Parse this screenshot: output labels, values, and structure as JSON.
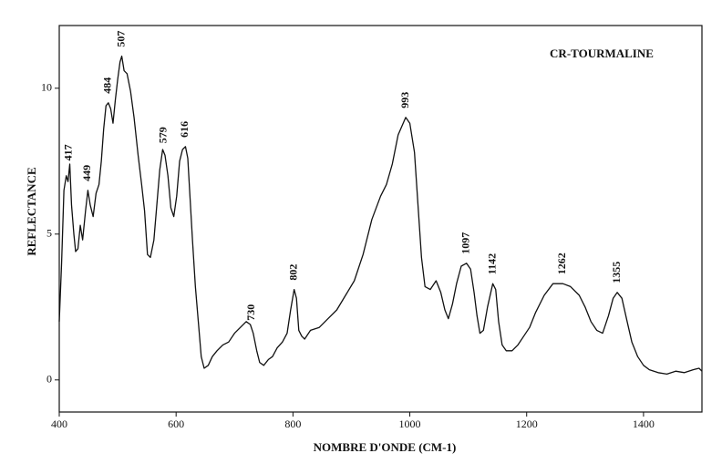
{
  "chart_data": {
    "type": "line",
    "title": "CR-TOURMALINE",
    "x_label": "NOMBRE D'ONDE (CM-1)",
    "y_label": "REFLECTANCE",
    "color": "#111111",
    "xlim": [
      400,
      1500
    ],
    "ylim": [
      -1.1,
      12.15
    ],
    "xticks": [
      400,
      600,
      800,
      1000,
      1200,
      1400
    ],
    "yticks": [
      0,
      5,
      10
    ],
    "grid": false,
    "peak_labels": [
      417,
      449,
      484,
      507,
      579,
      616,
      730,
      802,
      993,
      1097,
      1142,
      1262,
      1355
    ],
    "x": [
      400,
      404,
      408,
      412,
      415,
      418,
      421,
      425,
      428,
      432,
      436,
      440,
      445,
      449,
      453,
      458,
      463,
      468,
      472,
      476,
      480,
      484,
      488,
      492,
      496,
      500,
      504,
      507,
      511,
      516,
      522,
      528,
      535,
      541,
      546,
      551,
      556,
      562,
      567,
      572,
      577,
      581,
      586,
      591,
      596,
      601,
      606,
      611,
      616,
      620,
      624,
      628,
      633,
      638,
      643,
      648,
      655,
      662,
      670,
      680,
      690,
      700,
      710,
      720,
      727,
      732,
      738,
      743,
      750,
      758,
      765,
      773,
      782,
      790,
      796,
      802,
      806,
      810,
      815,
      820,
      830,
      845,
      860,
      875,
      890,
      905,
      920,
      935,
      950,
      960,
      970,
      980,
      993,
      1000,
      1008,
      1015,
      1020,
      1026,
      1035,
      1045,
      1053,
      1060,
      1066,
      1073,
      1080,
      1088,
      1097,
      1104,
      1110,
      1115,
      1120,
      1126,
      1133,
      1142,
      1147,
      1152,
      1158,
      1165,
      1175,
      1185,
      1195,
      1205,
      1215,
      1230,
      1245,
      1262,
      1275,
      1290,
      1300,
      1310,
      1320,
      1330,
      1340,
      1348,
      1355,
      1363,
      1372,
      1380,
      1390,
      1400,
      1410,
      1425,
      1440,
      1455,
      1470,
      1485,
      1495,
      1500
    ],
    "values": [
      2.0,
      4.0,
      6.5,
      7.0,
      6.8,
      7.4,
      6.0,
      5.0,
      4.4,
      4.5,
      5.3,
      4.8,
      5.8,
      6.5,
      6.0,
      5.6,
      6.4,
      6.7,
      7.5,
      8.6,
      9.4,
      9.5,
      9.3,
      8.8,
      9.6,
      10.3,
      10.9,
      11.1,
      10.6,
      10.5,
      9.9,
      9.0,
      7.7,
      6.7,
      5.8,
      4.3,
      4.2,
      4.8,
      6.0,
      7.2,
      7.9,
      7.7,
      7.0,
      5.9,
      5.6,
      6.3,
      7.5,
      7.9,
      8.0,
      7.6,
      6.2,
      4.8,
      3.2,
      2.0,
      0.8,
      0.4,
      0.5,
      0.8,
      1.0,
      1.2,
      1.3,
      1.6,
      1.8,
      2.0,
      1.9,
      1.6,
      1.0,
      0.6,
      0.5,
      0.7,
      0.8,
      1.1,
      1.3,
      1.6,
      2.4,
      3.1,
      2.8,
      1.7,
      1.5,
      1.4,
      1.7,
      1.8,
      2.1,
      2.4,
      2.9,
      3.4,
      4.3,
      5.5,
      6.3,
      6.7,
      7.4,
      8.4,
      9.0,
      8.8,
      7.8,
      5.7,
      4.2,
      3.2,
      3.1,
      3.4,
      3.0,
      2.4,
      2.1,
      2.6,
      3.3,
      3.9,
      4.0,
      3.8,
      3.0,
      2.2,
      1.6,
      1.7,
      2.5,
      3.3,
      3.1,
      2.0,
      1.2,
      1.0,
      1.0,
      1.2,
      1.5,
      1.8,
      2.3,
      2.9,
      3.3,
      3.3,
      3.2,
      2.9,
      2.5,
      2.0,
      1.7,
      1.6,
      2.2,
      2.8,
      3.0,
      2.8,
      2.0,
      1.3,
      0.8,
      0.5,
      0.35,
      0.25,
      0.2,
      0.3,
      0.25,
      0.35,
      0.4,
      0.3
    ]
  }
}
